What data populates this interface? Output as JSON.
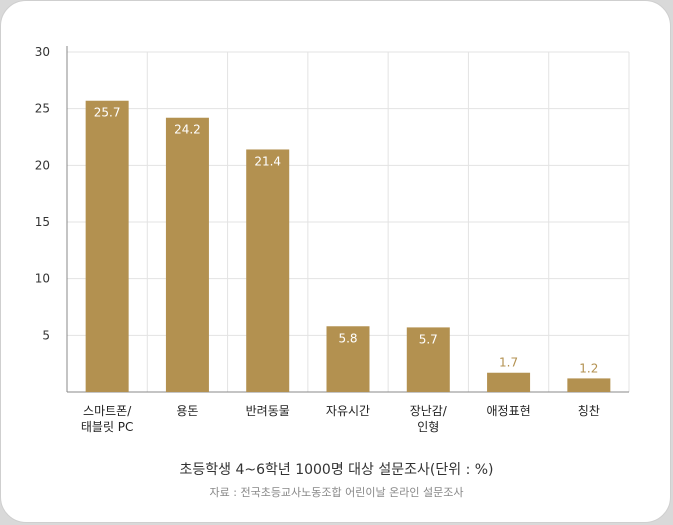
{
  "chart_data": {
    "type": "bar",
    "categories": [
      [
        "스마트폰/",
        "태블릿 PC"
      ],
      [
        "용돈"
      ],
      [
        "반려동물"
      ],
      [
        "자유시간"
      ],
      [
        "장난감/",
        "인형"
      ],
      [
        "애정표현"
      ],
      [
        "칭찬"
      ]
    ],
    "values": [
      25.7,
      24.2,
      21.4,
      5.8,
      5.7,
      1.7,
      1.2
    ],
    "value_labels": [
      "25.7",
      "24.2",
      "21.4",
      "5.8",
      "5.7",
      "1.7",
      "1.2"
    ],
    "yticks": [
      5,
      10,
      15,
      20,
      25,
      30
    ],
    "ylim": [
      0,
      30
    ],
    "grid": true,
    "title": "초등학생 4~6학년 1000명 대상 설문조사(단위 : %)",
    "source": "자료 : 전국초등교사노동조합 어린이날 온라인 설문조사",
    "colors": {
      "bar": "#b39150",
      "label_inside": "#ffffff",
      "label_outside": "#b39150",
      "grid": "#e3e3e3",
      "axis": "#888888"
    }
  }
}
